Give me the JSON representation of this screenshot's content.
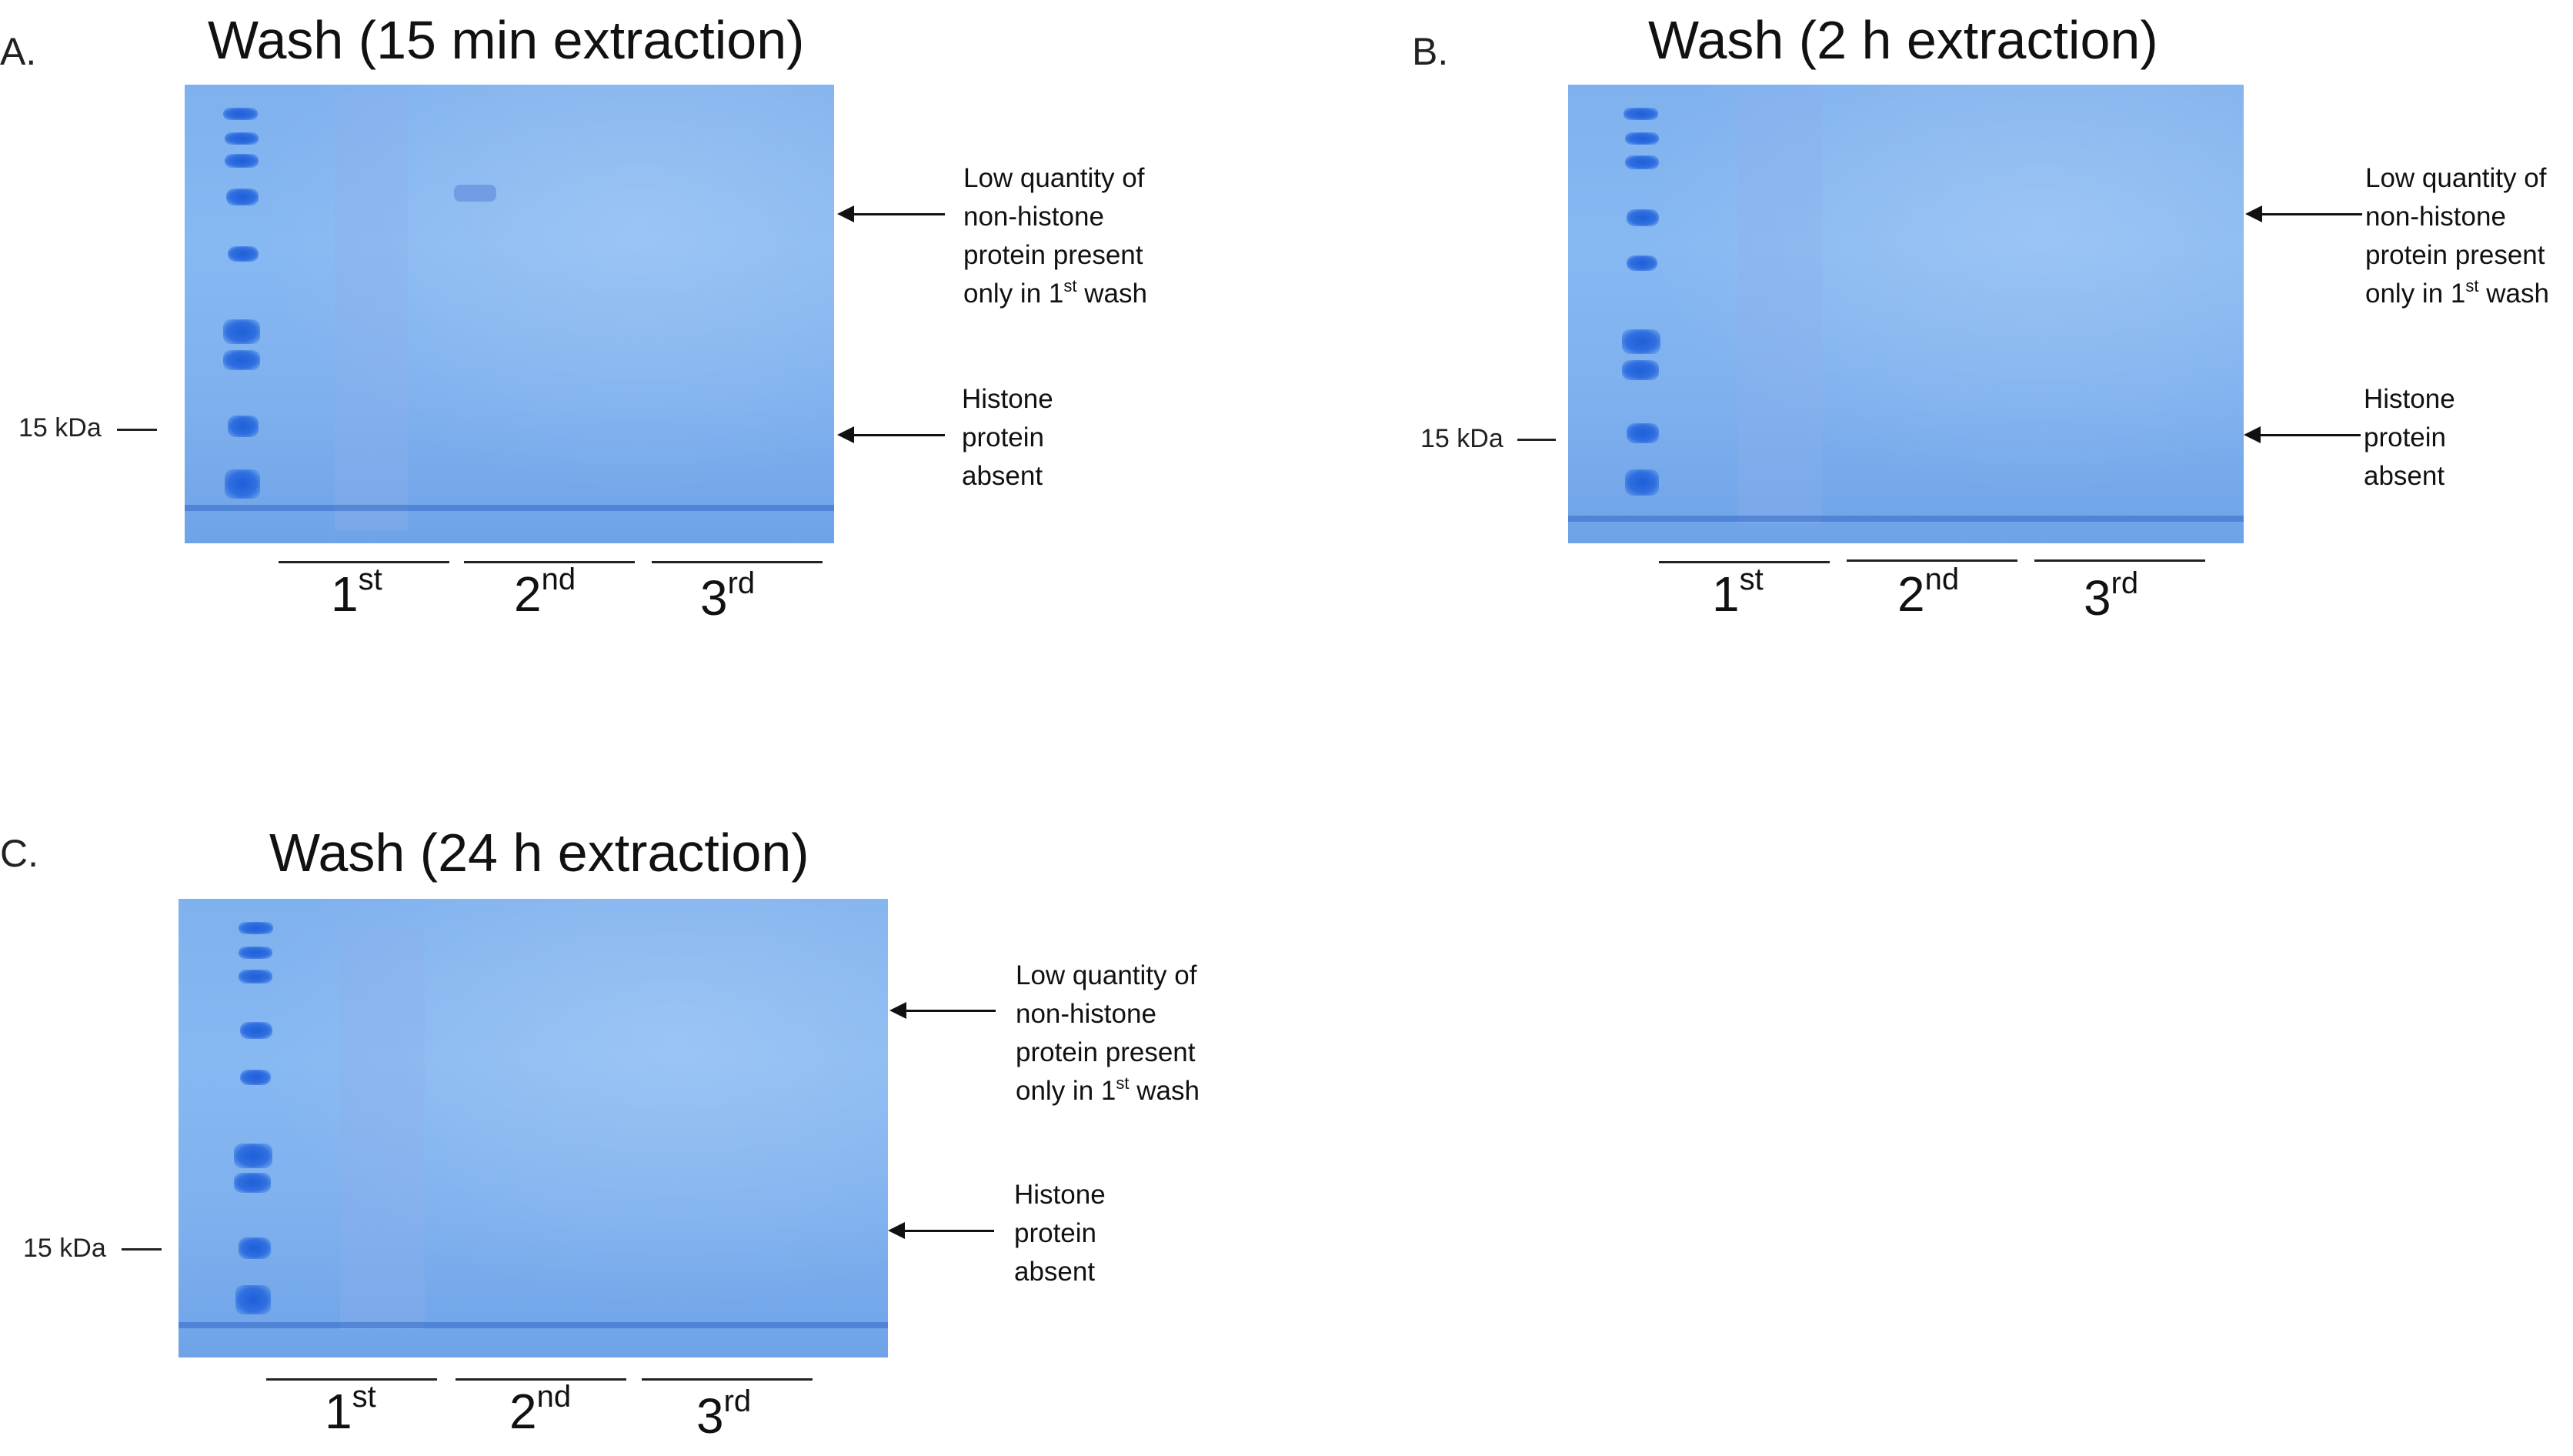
{
  "panels": [
    {
      "letter": "A.",
      "title": "Wash (15 min extraction)",
      "marker": "15 kDa",
      "lanes": [
        {
          "base": "1",
          "sup": "st"
        },
        {
          "base": "2",
          "sup": "nd"
        },
        {
          "base": "3",
          "sup": "rd"
        }
      ],
      "annotation_top": {
        "l1": "Low quantity of",
        "l2": "non-histone",
        "l3": "protein present",
        "l4a": "only in 1",
        "l4sup": "st",
        "l4b": " wash"
      },
      "annotation_bottom": {
        "l1": "Histone",
        "l2": "protein",
        "l3": "absent"
      }
    },
    {
      "letter": "B.",
      "title": "Wash (2 h extraction)",
      "marker": "15 kDa",
      "lanes": [
        {
          "base": "1",
          "sup": "st"
        },
        {
          "base": "2",
          "sup": "nd"
        },
        {
          "base": "3",
          "sup": "rd"
        }
      ],
      "annotation_top": {
        "l1": "Low quantity of",
        "l2": "non-histone",
        "l3": "protein present",
        "l4a": "only in 1",
        "l4sup": "st",
        "l4b": " wash"
      },
      "annotation_bottom": {
        "l1": "Histone",
        "l2": "protein",
        "l3": "absent"
      }
    },
    {
      "letter": "C.",
      "title": "Wash (24 h extraction)",
      "marker": "15 kDa",
      "lanes": [
        {
          "base": "1",
          "sup": "st"
        },
        {
          "base": "2",
          "sup": "nd"
        },
        {
          "base": "3",
          "sup": "rd"
        }
      ],
      "annotation_top": {
        "l1": "Low quantity of",
        "l2": "non-histone",
        "l3": "protein present",
        "l4a": "only in 1",
        "l4sup": "st",
        "l4b": " wash"
      },
      "annotation_bottom": {
        "l1": "Histone",
        "l2": "protein",
        "l3": "absent"
      }
    }
  ]
}
